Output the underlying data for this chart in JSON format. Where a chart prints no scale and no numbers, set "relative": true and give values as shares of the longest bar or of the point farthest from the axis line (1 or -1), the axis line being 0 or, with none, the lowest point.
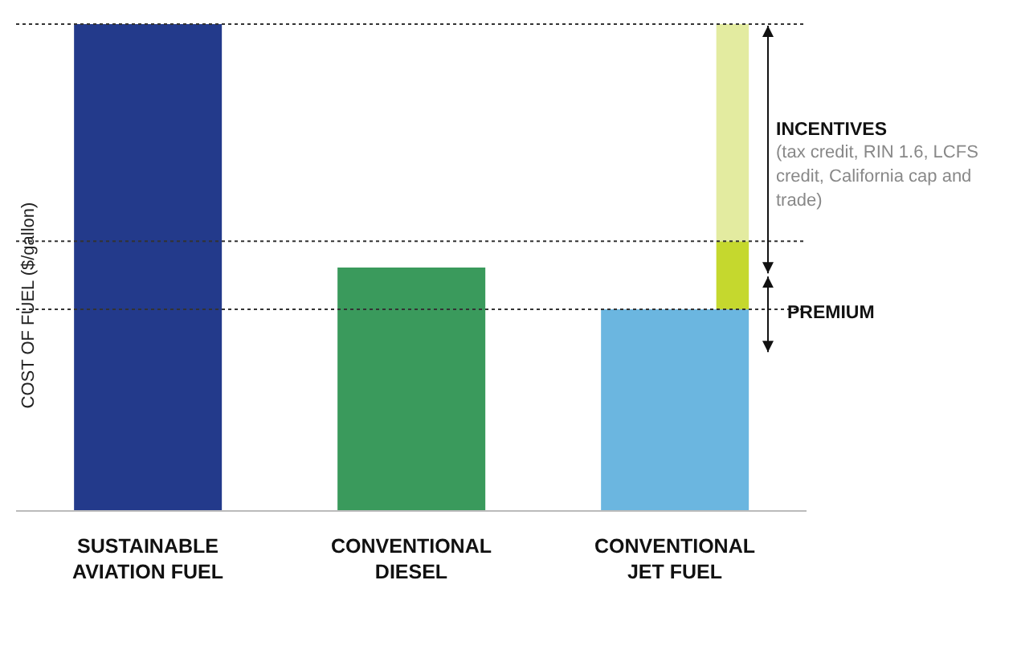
{
  "chart_data": {
    "type": "bar",
    "relative": true,
    "stacked": true,
    "ylabel": "COST OF FUEL ($/gallon)",
    "categories": [
      "SUSTAINABLE AVIATION FUEL",
      "CONVENTIONAL DIESEL",
      "CONVENTIONAL JET FUEL"
    ],
    "series": [
      {
        "colors": [
          "#233a8b",
          "#3a9a5c",
          "#6bb6e0"
        ],
        "values": [
          1,
          0.5,
          0.414
        ]
      },
      {
        "name": "PREMIUM",
        "color": "#c5d82e",
        "values": [
          null,
          null,
          0.14
        ]
      },
      {
        "name": "INCENTIVES",
        "color": "#e3eba0",
        "values": [
          null,
          null,
          0.446
        ]
      }
    ],
    "ref_lines": [
      {
        "axis": "y",
        "value": 1
      },
      {
        "axis": "y",
        "value": 0.554
      },
      {
        "axis": "y",
        "value": 0.414
      }
    ],
    "annotations": [
      "(tax credit, RIN 1.6, LCFS credit, California cap and trade)"
    ],
    "legend": false,
    "grid": false
  }
}
